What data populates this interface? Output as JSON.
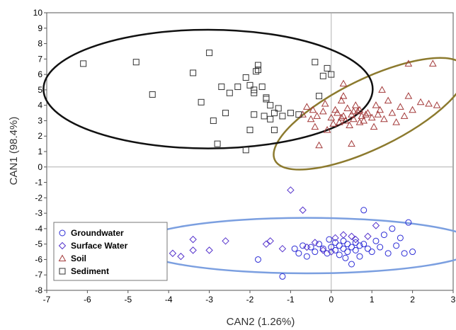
{
  "chart_data": {
    "type": "scatter",
    "title": "",
    "xlabel": "CAN2 (1.26%)",
    "ylabel": "CAN1 (98.4%)",
    "xlim": [
      -7,
      3
    ],
    "ylim": [
      -8,
      10
    ],
    "x_ticks": [
      -7,
      -6,
      -5,
      -4,
      -3,
      -2,
      -1,
      0,
      1,
      2,
      3
    ],
    "y_ticks": [
      -8,
      -7,
      -6,
      -5,
      -4,
      -3,
      -2,
      -1,
      0,
      1,
      2,
      3,
      4,
      5,
      6,
      7,
      8,
      9,
      10
    ],
    "reference_lines": {
      "x": 0,
      "y": 0
    },
    "legend": {
      "position": "bottom-left",
      "framed": true
    },
    "series": [
      {
        "name": "Groundwater",
        "marker": "circle",
        "color": "#2b2bd6",
        "ellipse": {
          "color": "#7b9fe0",
          "cx": -0.6,
          "cy": -5.1,
          "rx": 4.25,
          "ry": 1.8
        },
        "points": [
          [
            -1.8,
            -6.0
          ],
          [
            -1.2,
            -7.1
          ],
          [
            -0.8,
            -5.6
          ],
          [
            -0.6,
            -5.8
          ],
          [
            -0.5,
            -5.2
          ],
          [
            -0.4,
            -5.5
          ],
          [
            -0.3,
            -5.0
          ],
          [
            -0.2,
            -5.3
          ],
          [
            -0.1,
            -5.6
          ],
          [
            0.0,
            -5.2
          ],
          [
            0.1,
            -4.9
          ],
          [
            0.1,
            -5.4
          ],
          [
            0.2,
            -5.1
          ],
          [
            0.2,
            -5.7
          ],
          [
            0.3,
            -5.3
          ],
          [
            0.3,
            -4.8
          ],
          [
            0.4,
            -5.0
          ],
          [
            0.4,
            -5.5
          ],
          [
            0.5,
            -5.2
          ],
          [
            0.5,
            -6.3
          ],
          [
            0.6,
            -4.9
          ],
          [
            0.6,
            -5.4
          ],
          [
            0.7,
            -5.1
          ],
          [
            0.7,
            -5.8
          ],
          [
            0.8,
            -5.0
          ],
          [
            0.8,
            -2.8
          ],
          [
            0.9,
            -5.3
          ],
          [
            1.0,
            -5.5
          ],
          [
            1.1,
            -4.8
          ],
          [
            1.2,
            -5.2
          ],
          [
            1.3,
            -4.4
          ],
          [
            1.4,
            -5.6
          ],
          [
            1.5,
            -4.0
          ],
          [
            1.6,
            -5.1
          ],
          [
            1.7,
            -4.6
          ],
          [
            1.8,
            -5.6
          ],
          [
            1.9,
            -3.6
          ],
          [
            2.0,
            -5.5
          ],
          [
            -0.9,
            -5.3
          ],
          [
            -0.7,
            -5.1
          ],
          [
            -0.05,
            -4.7
          ],
          [
            0.35,
            -5.9
          ]
        ]
      },
      {
        "name": "Surface Water",
        "marker": "diamond",
        "color": "#5533cc",
        "points": [
          [
            -3.9,
            -5.6
          ],
          [
            -3.7,
            -5.8
          ],
          [
            -3.4,
            -4.7
          ],
          [
            -3.4,
            -5.4
          ],
          [
            -3.0,
            -5.4
          ],
          [
            -2.6,
            -4.8
          ],
          [
            -1.6,
            -5.0
          ],
          [
            -1.5,
            -4.8
          ],
          [
            -1.2,
            -5.3
          ],
          [
            -1.0,
            -1.5
          ],
          [
            -0.7,
            -2.8
          ],
          [
            -0.4,
            -4.9
          ],
          [
            -0.2,
            -5.4
          ],
          [
            0.1,
            -4.6
          ],
          [
            0.3,
            -4.4
          ],
          [
            0.5,
            -4.5
          ],
          [
            0.9,
            -4.5
          ],
          [
            1.1,
            -3.8
          ],
          [
            -0.6,
            -5.2
          ],
          [
            0.6,
            -4.7
          ],
          [
            0.0,
            -5.5
          ]
        ]
      },
      {
        "name": "Soil",
        "marker": "triangle",
        "color": "#a33a3a",
        "ellipse": {
          "color": "#8c7a2e",
          "cx": 0.95,
          "cy": 3.45,
          "rx": 2.6,
          "ry": 2.25,
          "angle": 26
        },
        "points": [
          [
            -0.7,
            3.4
          ],
          [
            -0.6,
            3.9
          ],
          [
            -0.5,
            3.1
          ],
          [
            -0.4,
            2.6
          ],
          [
            -0.3,
            1.4
          ],
          [
            -0.2,
            3.6
          ],
          [
            -0.1,
            2.4
          ],
          [
            0.0,
            3.2
          ],
          [
            0.05,
            2.8
          ],
          [
            0.1,
            3.7
          ],
          [
            0.15,
            3.5
          ],
          [
            0.2,
            2.9
          ],
          [
            0.25,
            4.3
          ],
          [
            0.3,
            3.3
          ],
          [
            0.35,
            3.0
          ],
          [
            0.4,
            3.8
          ],
          [
            0.45,
            2.7
          ],
          [
            0.5,
            3.4
          ],
          [
            0.55,
            3.1
          ],
          [
            0.6,
            4.0
          ],
          [
            0.65,
            3.6
          ],
          [
            0.7,
            2.9
          ],
          [
            0.75,
            3.3
          ],
          [
            0.8,
            3.0
          ],
          [
            0.9,
            3.5
          ],
          [
            1.0,
            3.2
          ],
          [
            1.1,
            4.0
          ],
          [
            1.2,
            3.7
          ],
          [
            1.3,
            3.1
          ],
          [
            1.4,
            4.3
          ],
          [
            1.5,
            3.5
          ],
          [
            1.6,
            2.9
          ],
          [
            1.7,
            3.9
          ],
          [
            1.8,
            3.3
          ],
          [
            1.9,
            4.6
          ],
          [
            2.0,
            3.7
          ],
          [
            2.2,
            4.2
          ],
          [
            2.4,
            4.1
          ],
          [
            2.6,
            4.0
          ],
          [
            1.9,
            6.7
          ],
          [
            2.5,
            6.7
          ],
          [
            0.3,
            5.4
          ],
          [
            0.3,
            4.6
          ],
          [
            0.5,
            1.5
          ],
          [
            -0.15,
            4.1
          ],
          [
            1.25,
            5.0
          ],
          [
            -0.45,
            3.7
          ],
          [
            0.85,
            3.4
          ],
          [
            1.05,
            2.6
          ],
          [
            0.55,
            3.6
          ],
          [
            0.25,
            3.2
          ],
          [
            0.7,
            3.7
          ],
          [
            1.15,
            3.4
          ],
          [
            -0.35,
            3.3
          ]
        ]
      },
      {
        "name": "Sediment",
        "marker": "square",
        "color": "#333333",
        "ellipse": {
          "color": "#111111",
          "cx": -3.03,
          "cy": 5.05,
          "rx": 4.05,
          "ry": 3.85
        },
        "points": [
          [
            -6.1,
            6.7
          ],
          [
            -4.8,
            6.8
          ],
          [
            -4.4,
            4.7
          ],
          [
            -3.4,
            6.1
          ],
          [
            -3.2,
            4.2
          ],
          [
            -3.0,
            7.4
          ],
          [
            -2.9,
            3.0
          ],
          [
            -2.6,
            3.5
          ],
          [
            -2.7,
            5.2
          ],
          [
            -2.5,
            4.8
          ],
          [
            -2.3,
            5.2
          ],
          [
            -2.1,
            5.8
          ],
          [
            -2.0,
            5.3
          ],
          [
            -2.0,
            2.4
          ],
          [
            -1.9,
            4.8
          ],
          [
            -1.9,
            3.4
          ],
          [
            -1.8,
            6.6
          ],
          [
            -1.8,
            6.3
          ],
          [
            -1.7,
            5.2
          ],
          [
            -1.65,
            3.3
          ],
          [
            -1.6,
            4.5
          ],
          [
            -1.5,
            4.0
          ],
          [
            -1.5,
            3.1
          ],
          [
            -1.4,
            2.4
          ],
          [
            -1.4,
            3.5
          ],
          [
            -1.3,
            3.8
          ],
          [
            -1.0,
            3.5
          ],
          [
            -0.8,
            3.4
          ],
          [
            -0.4,
            6.8
          ],
          [
            -0.2,
            5.9
          ],
          [
            -0.1,
            6.4
          ],
          [
            0.0,
            6.0
          ],
          [
            -2.1,
            1.1
          ],
          [
            -1.6,
            4.4
          ],
          [
            -1.2,
            3.3
          ],
          [
            -2.8,
            1.5
          ],
          [
            -1.9,
            5.0
          ],
          [
            -0.3,
            4.6
          ],
          [
            -1.85,
            6.2
          ]
        ]
      }
    ]
  }
}
